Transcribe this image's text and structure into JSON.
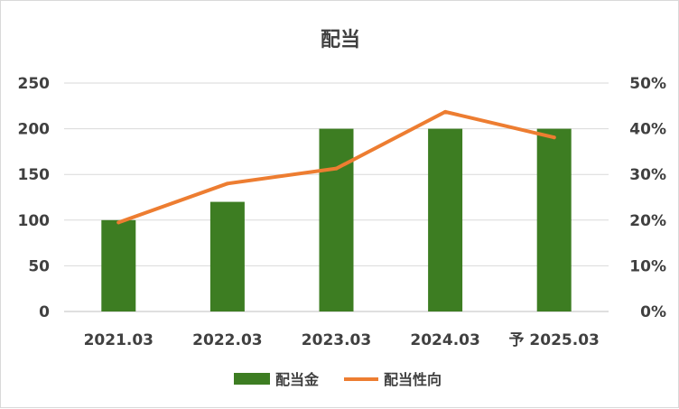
{
  "chart_data": {
    "type": "bar",
    "title": "配当",
    "categories": [
      "2021.03",
      "2022.03",
      "2023.03",
      "2024.03",
      "予 2025.03"
    ],
    "series": [
      {
        "name": "配当金",
        "type": "bar",
        "axis": "left",
        "values": [
          100,
          120,
          200,
          200,
          200
        ],
        "color": "#3d7d22"
      },
      {
        "name": "配当性向",
        "type": "line",
        "axis": "right",
        "values": [
          19.5,
          28.0,
          31.3,
          43.7,
          38.1
        ],
        "color": "#ed7d31"
      }
    ],
    "y_left": {
      "min": 0,
      "max": 250,
      "step": 50,
      "tick_labels": [
        "0",
        "50",
        "100",
        "150",
        "200",
        "250"
      ]
    },
    "y_right": {
      "min": 0,
      "max": 50,
      "step": 10,
      "tick_labels": [
        "0%",
        "10%",
        "20%",
        "30%",
        "40%",
        "50%"
      ]
    },
    "grid": true,
    "legend_position": "bottom"
  }
}
